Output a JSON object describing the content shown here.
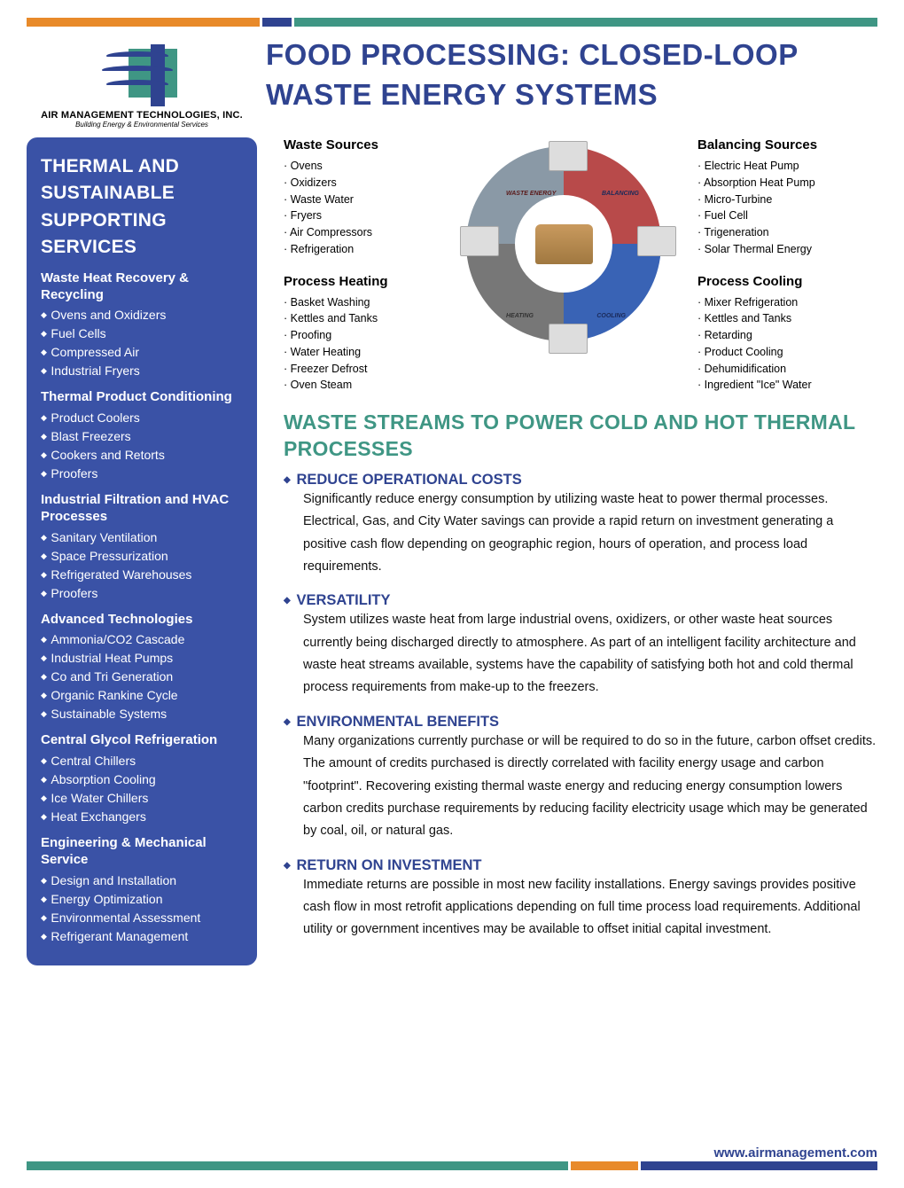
{
  "colors": {
    "brand_blue": "#2f4390",
    "sidebar_blue": "#3a52a6",
    "brand_teal": "#3f9684",
    "brand_orange": "#e88a2a",
    "text": "#111111",
    "white": "#ffffff"
  },
  "company": {
    "name": "AIR MANAGEMENT TECHNOLOGIES, INC.",
    "tagline": "Building Energy & Environmental Services"
  },
  "title": "FOOD PROCESSING:  CLOSED-LOOP WASTE ENERGY SYSTEMS",
  "sidebar": {
    "title": "THERMAL AND SUSTAINABLE SUPPORTING SERVICES",
    "sections": [
      {
        "title": "Waste Heat Recovery & Recycling",
        "items": [
          "Ovens and Oxidizers",
          "Fuel Cells",
          "Compressed Air",
          "Industrial Fryers"
        ]
      },
      {
        "title": "Thermal Product Conditioning",
        "items": [
          "Product Coolers",
          "Blast Freezers",
          "Cookers and Retorts",
          "Proofers"
        ]
      },
      {
        "title": "Industrial Filtration and HVAC Processes",
        "items": [
          "Sanitary Ventilation",
          "Space Pressurization",
          "Refrigerated Warehouses",
          "Proofers"
        ]
      },
      {
        "title": "Advanced Technologies",
        "items": [
          "Ammonia/CO2 Cascade",
          "Industrial Heat Pumps",
          "Co and Tri Generation",
          "Organic Rankine Cycle",
          "Sustainable Systems"
        ]
      },
      {
        "title": "Central Glycol Refrigeration",
        "items": [
          "Central Chillers",
          "Absorption Cooling",
          "Ice Water Chillers",
          "Heat Exchangers"
        ]
      },
      {
        "title": "Engineering & Mechanical Service",
        "items": [
          "Design and Installation",
          "Energy Optimization",
          "Environmental Assessment",
          "Refrigerant Management"
        ]
      }
    ]
  },
  "quadrants": {
    "top_left": {
      "title": "Waste Sources",
      "items": [
        "Ovens",
        "Oxidizers",
        "Waste Water",
        "Fryers",
        "Air Compressors",
        "Refrigeration"
      ]
    },
    "top_right": {
      "title": "Balancing Sources",
      "items": [
        "Electric Heat Pump",
        "Absorption Heat Pump",
        "Micro-Turbine",
        "Fuel Cell",
        "Trigeneration",
        "Solar Thermal Energy"
      ]
    },
    "bottom_left": {
      "title": "Process Heating",
      "items": [
        "Basket Washing",
        "Kettles and Tanks",
        "Proofing",
        "Water Heating",
        "Freezer Defrost",
        "Oven Steam"
      ]
    },
    "bottom_right": {
      "title": "Process Cooling",
      "items": [
        "Mixer Refrigeration",
        "Kettles and Tanks",
        "Retarding",
        "Product Cooling",
        "Dehumidification",
        "Ingredient \"Ice\" Water"
      ]
    }
  },
  "cycle": {
    "type": "cycle-diagram",
    "arc_labels": [
      "WASTE ENERGY",
      "BALANCING",
      "COOLING",
      "HEATING"
    ],
    "arc_colors": [
      "#b84a4a",
      "#8a99a6",
      "#3963b5",
      "#777777"
    ],
    "center_icon": "bread-loaf"
  },
  "subhead": "WASTE STREAMS TO POWER COLD AND HOT THERMAL PROCESSES",
  "benefits": [
    {
      "title": "REDUCE OPERATIONAL COSTS",
      "body": "Significantly reduce energy consumption by utilizing waste heat to power thermal processes. Electrical, Gas, and City Water savings can provide a rapid return on investment generating a positive cash flow depending on geographic region, hours of operation, and process load requirements."
    },
    {
      "title": "VERSATILITY",
      "body": "System utilizes waste heat from large industrial ovens, oxidizers, or other waste heat sources currently being discharged directly to atmosphere.  As part of an intelligent facility architecture and waste heat streams available, systems have the capability of satisfying both hot and cold thermal process requirements from make-up to the freezers."
    },
    {
      "title": "ENVIRONMENTAL BENEFITS",
      "body": "Many organizations currently purchase or will be required to do so in the future, carbon offset credits.  The amount of credits purchased is directly correlated with facility energy usage and carbon \"footprint\".  Recovering existing thermal waste energy and reducing energy consumption lowers carbon credits purchase requirements by reducing facility electricity usage which may be generated by coal, oil, or natural gas."
    },
    {
      "title": "RETURN ON INVESTMENT",
      "body": "Immediate returns are possible in most new facility installations.  Energy savings provides positive cash flow in most retrofit applications depending on full time process load requirements.  Additional utility or government incentives may be available to offset initial capital investment."
    }
  ],
  "website": "www.airmanagement.com"
}
